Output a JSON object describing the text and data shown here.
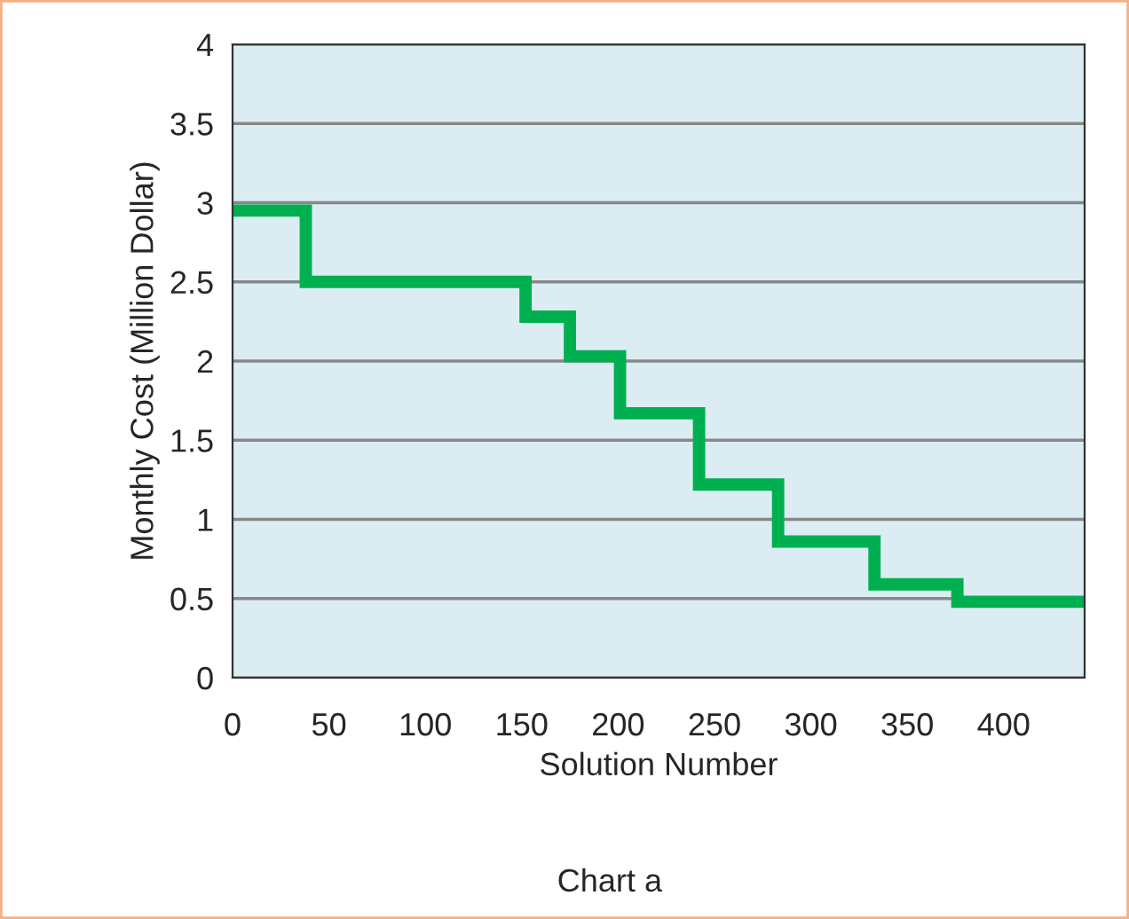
{
  "chart_data": {
    "type": "step",
    "xlabel": "Solution Number",
    "ylabel": "Monthly Cost (Million Dollar)",
    "annotations": [
      "Chart a"
    ],
    "x": [
      0,
      38,
      152,
      175,
      201,
      242,
      283,
      333,
      376,
      442
    ],
    "series": [
      {
        "color": "#00b050",
        "values": [
          2.95,
          2.5,
          2.28,
          2.03,
          1.67,
          1.22,
          0.86,
          0.59,
          0.48,
          0.48
        ]
      }
    ],
    "xlim": [
      0,
      442
    ],
    "xticks": [
      0,
      50,
      100,
      150,
      200,
      250,
      300,
      350,
      400
    ],
    "ylim": [
      0,
      4
    ],
    "yticks": [
      0,
      0.5,
      1,
      1.5,
      2,
      2.5,
      3,
      3.5,
      4
    ],
    "grid": "y",
    "marker": "none",
    "line_style": "solid"
  }
}
